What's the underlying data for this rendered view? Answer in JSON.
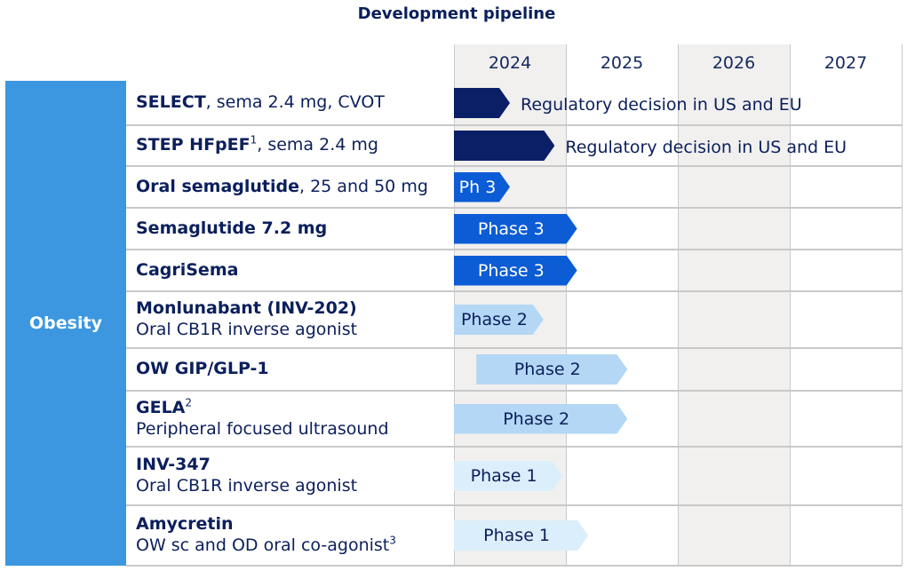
{
  "title": "Development pipeline",
  "category": "Obesity",
  "colors": {
    "dark_navy": "#0a1f66",
    "blue": "#0b5cd5",
    "light_blue": "#b3d7f4",
    "pale_blue": "#dbeefb",
    "category_bg": "#3c97e0",
    "column_shade": "#f1f0ef"
  },
  "chart_data": {
    "type": "gantt",
    "title": "Development pipeline",
    "x": [
      "2024",
      "2025",
      "2026",
      "2027"
    ],
    "x_unit": "year",
    "xlim": [
      2024,
      2028
    ],
    "category": "Obesity",
    "rows": [
      {
        "name_bold": "SELECT",
        "name_rest": ", sema 2.4 mg, CVOT",
        "sup": "",
        "subtitle": "",
        "bar_label": "",
        "start": 2024.0,
        "end": 2024.5,
        "style": "dark_navy",
        "note": "Regulatory decision in US and EU"
      },
      {
        "name_bold": "STEP HFpEF",
        "name_rest": ", sema 2.4 mg",
        "sup": "1",
        "subtitle": "",
        "bar_label": "",
        "start": 2024.0,
        "end": 2024.9,
        "style": "dark_navy",
        "note": "Regulatory decision in US and EU"
      },
      {
        "name_bold": "Oral semaglutide",
        "name_rest": ", 25 and 50 mg",
        "sup": "",
        "subtitle": "",
        "bar_label": "Ph 3",
        "start": 2024.0,
        "end": 2024.5,
        "style": "blue",
        "note": ""
      },
      {
        "name_bold": "Semaglutide 7.2 mg",
        "name_rest": "",
        "sup": "",
        "subtitle": "",
        "bar_label": "Phase 3",
        "start": 2024.0,
        "end": 2025.1,
        "style": "blue",
        "note": ""
      },
      {
        "name_bold": "CagriSema",
        "name_rest": "",
        "sup": "",
        "subtitle": "",
        "bar_label": "Phase 3",
        "start": 2024.0,
        "end": 2025.1,
        "style": "blue",
        "note": ""
      },
      {
        "name_bold": "Monlunabant (INV-202)",
        "name_rest": "",
        "sup": "",
        "subtitle": "Oral CB1R inverse agonist",
        "bar_label": "Phase 2",
        "start": 2024.0,
        "end": 2024.8,
        "style": "light_blue",
        "note": ""
      },
      {
        "name_bold": "OW GIP/GLP-1",
        "name_rest": "",
        "sup": "",
        "subtitle": "",
        "bar_label": "Phase 2",
        "start": 2024.2,
        "end": 2025.55,
        "style": "light_blue",
        "note": ""
      },
      {
        "name_bold": "GELA",
        "name_rest": "",
        "sup": "2",
        "subtitle": "Peripheral focused ultrasound",
        "bar_label": "Phase 2",
        "start": 2024.0,
        "end": 2025.55,
        "style": "light_blue",
        "note": ""
      },
      {
        "name_bold": "INV-347",
        "name_rest": "",
        "sup": "",
        "subtitle": "Oral CB1R inverse agonist",
        "bar_label": "Phase 1",
        "start": 2024.0,
        "end": 2024.97,
        "style": "pale_blue",
        "note": ""
      },
      {
        "name_bold": "Amycretin",
        "name_rest": "",
        "sup": "3",
        "subtitle": "OW sc and OD oral co-agonist",
        "sup_on_subtitle": true,
        "bar_label": "Phase 1",
        "start": 2024.0,
        "end": 2025.2,
        "style": "pale_blue",
        "note": ""
      }
    ]
  }
}
